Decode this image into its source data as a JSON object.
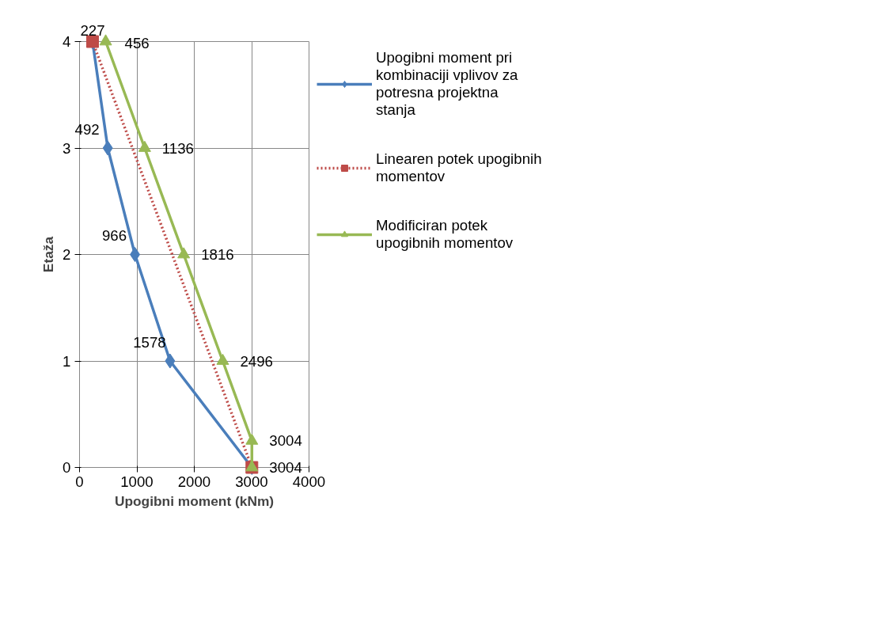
{
  "chart_data": {
    "type": "line",
    "xlabel": "Upogibni moment (kNm)",
    "ylabel": "Etaža",
    "xlim": [
      0,
      4000
    ],
    "xticks": [
      0,
      1000,
      2000,
      3000,
      4000
    ],
    "ylim": [
      0,
      4
    ],
    "yticks": [
      0,
      1,
      2,
      3,
      4
    ],
    "grid": true,
    "legend": "right",
    "series": [
      {
        "name": "Upogibni moment pri kombinaciji vplivov za potresna projektna stanja",
        "color": "#4a7ebb",
        "marker": "diamond",
        "line_style": "solid",
        "x": [
          227,
          492,
          966,
          1578,
          3004
        ],
        "values": [
          4,
          3,
          2,
          1,
          0
        ]
      },
      {
        "name": "Linearen potek upogibnih momentov",
        "color": "#be4b48",
        "marker": "square",
        "line_style": "dotted",
        "x": [
          227,
          3004
        ],
        "values": [
          4,
          0
        ]
      },
      {
        "name": "Modificiran potek upogibnih momentov",
        "color": "#98b954",
        "marker": "triangle",
        "line_style": "solid",
        "x": [
          456,
          1136,
          1816,
          2496,
          3004,
          3004
        ],
        "values": [
          4,
          3,
          2,
          1,
          0.25,
          0
        ]
      }
    ],
    "annotations": [
      {
        "text": "227",
        "x": 227,
        "y": 4
      },
      {
        "text": "456",
        "x": 456,
        "y": 4
      },
      {
        "text": "492",
        "x": 492,
        "y": 3
      },
      {
        "text": "1136",
        "x": 1136,
        "y": 3
      },
      {
        "text": "966",
        "x": 966,
        "y": 2
      },
      {
        "text": "1816",
        "x": 1816,
        "y": 2
      },
      {
        "text": "1578",
        "x": 1578,
        "y": 1
      },
      {
        "text": "2496",
        "x": 2496,
        "y": 1
      },
      {
        "text": "3004",
        "x": 3004,
        "y": 0.25
      },
      {
        "text": "3004",
        "x": 3004,
        "y": 0
      }
    ]
  }
}
